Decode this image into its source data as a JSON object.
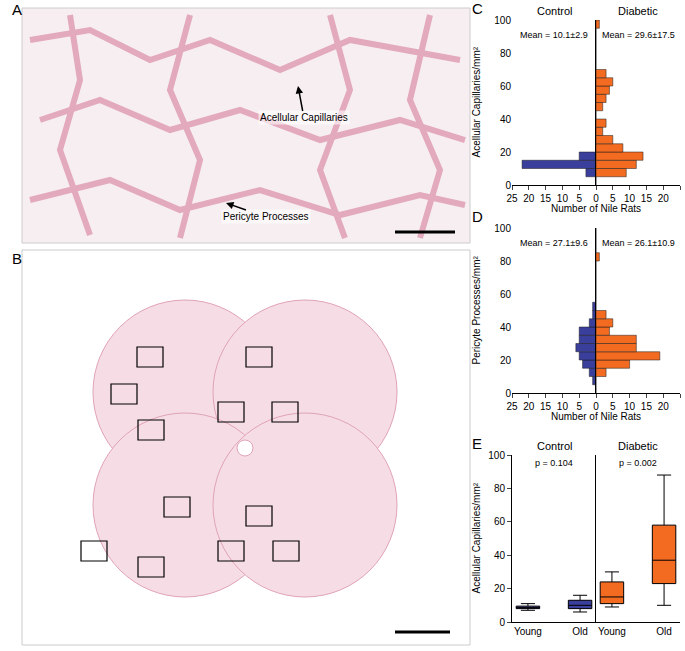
{
  "images": [
    {
      "panel": "A",
      "annotations": [
        "Acellular Capillaries",
        "Pericyte Processes"
      ]
    },
    {
      "panel": "B"
    }
  ],
  "chart_data": [
    {
      "panel": "C",
      "type": "histogram",
      "orientation": "horizontal",
      "title": "Control",
      "annotation": "Mean = 10.1±2.9",
      "ylabel": "Acellular Capillaries/mm²",
      "xlabel": "Number of Nile Rats",
      "bins": [
        0,
        5,
        10,
        15,
        20,
        25,
        30,
        35,
        40,
        45,
        50,
        55,
        60,
        65,
        70,
        75,
        80,
        85,
        90,
        95,
        100
      ],
      "values": [
        0,
        3,
        22,
        5,
        0,
        0,
        0,
        0,
        0,
        0,
        0,
        0,
        0,
        0,
        0,
        0,
        0,
        0,
        0,
        0
      ],
      "color": "#3b3f9c",
      "xlim": [
        25,
        0
      ],
      "xticks": [
        25,
        20,
        15,
        10,
        5,
        0
      ],
      "ylim": [
        0,
        100
      ],
      "yticks": [
        0,
        20,
        40,
        60,
        80,
        100
      ],
      "grid": false
    },
    {
      "type": "histogram",
      "orientation": "horizontal",
      "title": "Diabetic",
      "annotation": "Mean = 29.6±17.5",
      "bins": [
        0,
        5,
        10,
        15,
        20,
        25,
        30,
        35,
        40,
        45,
        50,
        55,
        60,
        65,
        70,
        75,
        80,
        85,
        90,
        95,
        100
      ],
      "values": [
        0,
        9,
        12,
        14,
        8,
        5,
        2,
        3,
        0,
        2,
        3,
        4,
        5,
        3,
        0,
        0,
        0,
        0,
        0,
        1
      ],
      "color": "#f26b21",
      "xlim": [
        0,
        25
      ],
      "xticks": [
        5,
        10,
        15,
        20,
        25
      ],
      "ylim": [
        0,
        100
      ],
      "tick_labels": "x",
      "grid": false
    },
    {
      "panel": "D",
      "type": "histogram",
      "orientation": "horizontal",
      "annotation": "Mean = 27.1±9.6",
      "ylabel": "Pericyte Processes/mm²",
      "xlabel": "Number of Nile Rats",
      "bins": [
        0,
        5,
        10,
        15,
        20,
        25,
        30,
        35,
        40,
        45,
        50,
        55,
        60,
        65,
        70,
        75,
        80,
        85,
        90,
        95,
        100
      ],
      "values": [
        0,
        1,
        2,
        4,
        5,
        6,
        5,
        5,
        2,
        1,
        1,
        0,
        0,
        0,
        0,
        0,
        0,
        0,
        0,
        0
      ],
      "color": "#3b3f9c",
      "xlim": [
        25,
        0
      ],
      "xticks": [
        25,
        20,
        15,
        10,
        5,
        0
      ],
      "ylim": [
        0,
        100
      ],
      "yticks": [
        0,
        20,
        40,
        60,
        80,
        100
      ],
      "grid": false
    },
    {
      "type": "histogram",
      "orientation": "horizontal",
      "annotation": "Mean = 26.1±10.9",
      "bins": [
        0,
        5,
        10,
        15,
        20,
        25,
        30,
        35,
        40,
        45,
        50,
        55,
        60,
        65,
        70,
        75,
        80,
        85,
        90,
        95,
        100
      ],
      "values": [
        0,
        0,
        3,
        10,
        19,
        12,
        12,
        4,
        5,
        3,
        0,
        0,
        0,
        0,
        0,
        0,
        1,
        0,
        0,
        0
      ],
      "color": "#f26b21",
      "xlim": [
        0,
        25
      ],
      "xticks": [
        5,
        10,
        15,
        20,
        25
      ],
      "ylim": [
        0,
        100
      ],
      "tick_labels": "x",
      "grid": false
    },
    {
      "panel": "E",
      "type": "box",
      "title": "Control",
      "annotation": "p = 0.104",
      "ylabel": "Acellular Capillaries/mm²",
      "categories": [
        "Young",
        "Old"
      ],
      "min": [
        7,
        6
      ],
      "q1": [
        8,
        8
      ],
      "median": [
        8.5,
        10
      ],
      "q3": [
        9.5,
        13
      ],
      "max": [
        11,
        16
      ],
      "color": "#3b3f9c",
      "ylim": [
        0,
        100
      ],
      "yticks": [
        0,
        20,
        40,
        60,
        80,
        100
      ],
      "grid": false
    },
    {
      "type": "box",
      "title": "Diabetic",
      "annotation": "p = 0.002",
      "categories": [
        "Young",
        "Old"
      ],
      "min": [
        9,
        10
      ],
      "q1": [
        11,
        23
      ],
      "median": [
        15,
        37
      ],
      "q3": [
        24,
        58
      ],
      "max": [
        30,
        88
      ],
      "color": "#f26b21",
      "ylim": [
        0,
        100
      ],
      "tick_labels": "x",
      "grid": false
    }
  ]
}
